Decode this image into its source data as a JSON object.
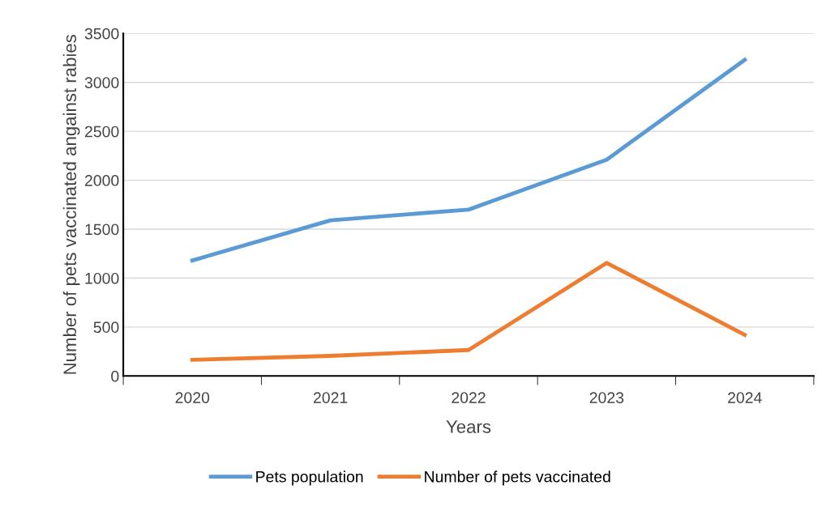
{
  "chart_data": {
    "type": "line",
    "xlabel": "Years",
    "ylabel": "Number of pets vaccinated angainst rabies",
    "categories": [
      "2020",
      "2021",
      "2022",
      "2023",
      "2024"
    ],
    "series": [
      {
        "name": "Pets population",
        "color": "#5b9bd5",
        "values": [
          1180,
          1590,
          1700,
          2210,
          3230
        ]
      },
      {
        "name": "Number of pets vaccinated",
        "color": "#ed7d31",
        "values": [
          165,
          205,
          265,
          1155,
          420
        ]
      }
    ],
    "ylim": [
      0,
      3500
    ],
    "yticks": [
      0,
      500,
      1000,
      1500,
      2000,
      2500,
      3000,
      3500
    ],
    "grid": "y",
    "legend": "bottom",
    "marker": "none",
    "line_style": "solid"
  }
}
